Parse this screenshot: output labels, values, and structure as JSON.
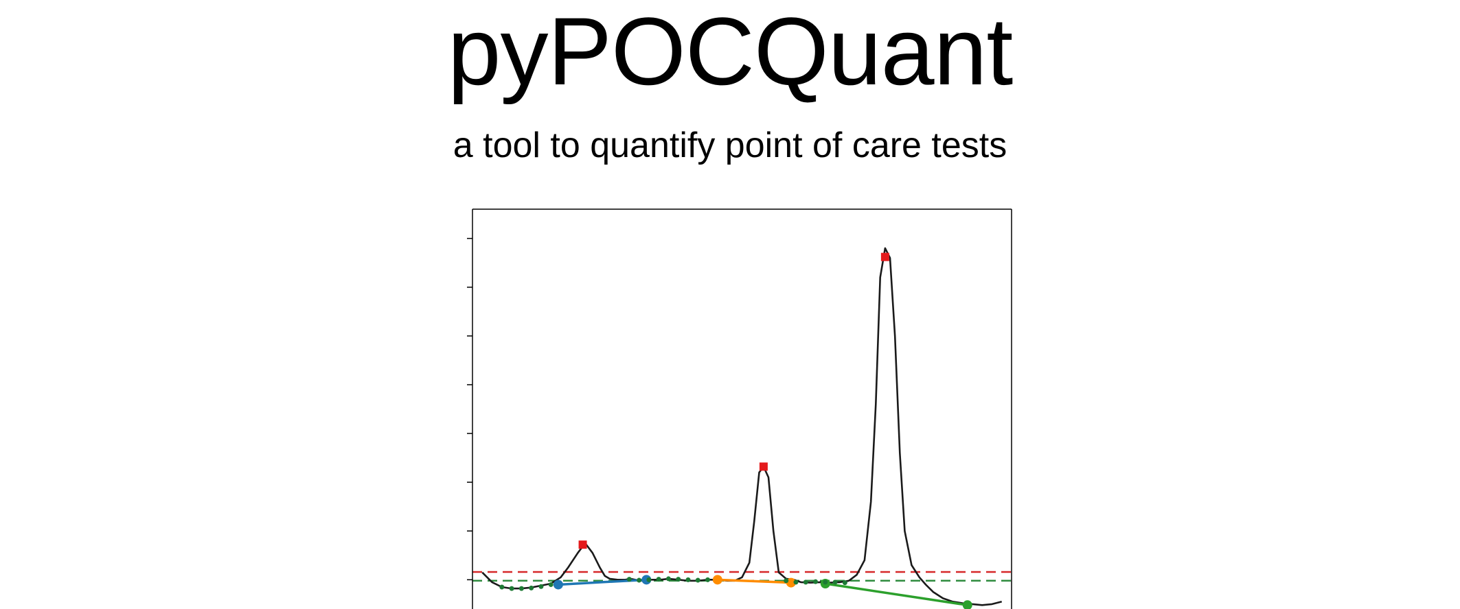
{
  "header": {
    "title": "pyPOCQuant",
    "subtitle": "a tool to quantify point of care tests"
  },
  "chart_data": {
    "type": "line",
    "title": "",
    "xlabel": "",
    "ylabel": "",
    "xlim": [
      0,
      110
    ],
    "ylim": [
      -0.6,
      7.6
    ],
    "y_tick_values": [
      0,
      1,
      2,
      3,
      4,
      5,
      6,
      7
    ],
    "grid": false,
    "legend": "none",
    "profile": {
      "color": "#1a1a1a",
      "x": [
        2,
        4,
        6,
        8,
        10,
        12,
        14,
        16,
        18,
        19.5,
        21.5,
        23,
        24.5,
        26,
        27,
        28,
        29.6,
        31.2,
        32.2,
        33.2,
        34.2,
        35.6,
        37,
        38.4,
        40,
        42,
        44,
        46,
        48,
        50,
        52,
        53.5,
        55,
        56.5,
        57.5,
        58.5,
        59.4,
        60.4,
        61.4,
        62.5,
        64,
        65.6,
        67,
        69,
        71,
        73,
        75,
        76.8,
        78.4,
        80,
        81.3,
        82.3,
        83.2,
        84.2,
        85.2,
        86.2,
        87.2,
        88.2,
        89.6,
        91.2,
        92.5,
        94,
        96,
        98,
        100,
        102,
        104,
        106,
        108
      ],
      "y": [
        0.15,
        -0.05,
        -0.15,
        -0.18,
        -0.18,
        -0.16,
        -0.12,
        -0.08,
        0.05,
        0.25,
        0.55,
        0.75,
        0.55,
        0.25,
        0.08,
        0.02,
        0.0,
        0.0,
        0.02,
        0.0,
        -0.02,
        0.0,
        0.0,
        0.0,
        0.02,
        0.0,
        -0.02,
        -0.02,
        0.0,
        0.0,
        -0.02,
        -0.02,
        0.05,
        0.35,
        1.2,
        2.2,
        2.32,
        2.1,
        1.0,
        0.15,
        0.02,
        0.0,
        -0.05,
        -0.06,
        -0.05,
        -0.06,
        -0.05,
        -0.02,
        0.1,
        0.4,
        1.6,
        3.6,
        6.2,
        6.8,
        6.6,
        5.0,
        2.6,
        1.0,
        0.3,
        0.05,
        -0.1,
        -0.25,
        -0.38,
        -0.45,
        -0.48,
        -0.5,
        -0.52,
        -0.5,
        -0.45
      ]
    },
    "peaks": {
      "color": "#e41a1c",
      "x": [
        22.5,
        59.4,
        84.2
      ],
      "y": [
        0.72,
        2.32,
        6.62
      ]
    },
    "reference_lines": [
      {
        "color": "#d62728",
        "style": "dashed",
        "y": 0.16
      },
      {
        "color": "#2e8b3e",
        "style": "dashed",
        "y": -0.02
      }
    ],
    "noise_points": {
      "color": "#1d7a34",
      "x": [
        6,
        8,
        10,
        12,
        14,
        16,
        32,
        34,
        36,
        38,
        40,
        42,
        44,
        46,
        48,
        64,
        66,
        68,
        70,
        72,
        74,
        76
      ],
      "y": [
        -0.15,
        -0.18,
        -0.18,
        -0.17,
        -0.14,
        -0.1,
        0.01,
        -0.01,
        0.0,
        0.01,
        0.02,
        0.01,
        0.0,
        -0.01,
        0.0,
        -0.02,
        -0.05,
        -0.05,
        -0.04,
        -0.05,
        -0.05,
        -0.06
      ]
    },
    "baselines": [
      {
        "color": "#1f77b4",
        "x": [
          17.5,
          35.5
        ],
        "y": [
          -0.1,
          0.0
        ]
      },
      {
        "color": "#ff8c00",
        "x": [
          50,
          65
        ],
        "y": [
          0.0,
          -0.06
        ]
      },
      {
        "color": "#2ca02c",
        "x": [
          72,
          101
        ],
        "y": [
          -0.08,
          -0.52
        ]
      }
    ]
  }
}
